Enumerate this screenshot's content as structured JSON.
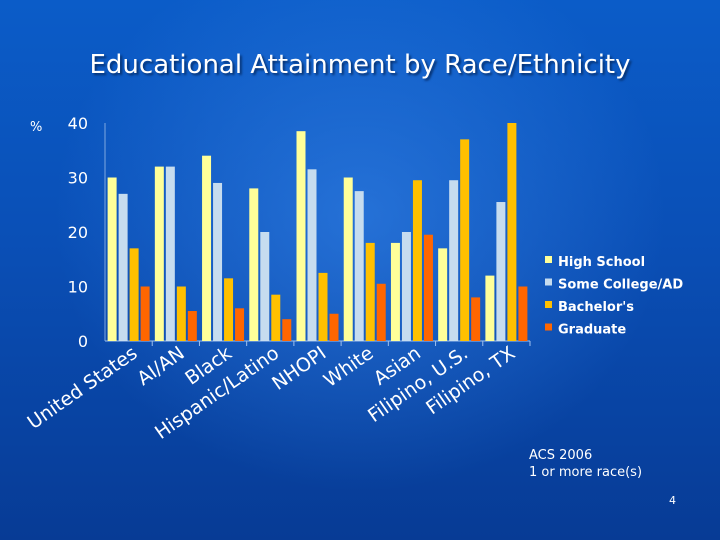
{
  "slide": {
    "title": "Educational Attainment by Race/Ethnicity",
    "source_line1": "ACS 2006",
    "source_line2": "1 or more race(s)",
    "page_number": "4"
  },
  "chart_data": {
    "type": "bar",
    "title": "Educational Attainment by Race/Ethnicity",
    "xlabel": "",
    "ylabel": "%",
    "ylim": [
      0,
      40
    ],
    "yticks": [
      0,
      10,
      20,
      30,
      40
    ],
    "grid": false,
    "legend": "right",
    "categories": [
      "United States",
      "AI/AN",
      "Black",
      "Hispanic/Latino",
      "NHOPI",
      "White",
      "Asian",
      "Filipino, U.S.",
      "Filipino, TX"
    ],
    "series": [
      {
        "name": "High School",
        "color": "#ffff99",
        "values": [
          30,
          32,
          34,
          28,
          38.5,
          30,
          18,
          17,
          12
        ]
      },
      {
        "name": "Some College/AD",
        "color": "#c6dcef",
        "values": [
          27,
          32,
          29,
          20,
          31.5,
          27.5,
          20,
          29.5,
          25.5
        ]
      },
      {
        "name": "Bachelor's",
        "color": "#ffc000",
        "values": [
          17,
          10,
          11.5,
          8.5,
          12.5,
          18,
          29.5,
          37,
          40
        ]
      },
      {
        "name": "Graduate",
        "color": "#ff6600",
        "values": [
          10,
          5.5,
          6,
          4,
          5,
          10.5,
          19.5,
          8,
          10
        ]
      }
    ]
  }
}
